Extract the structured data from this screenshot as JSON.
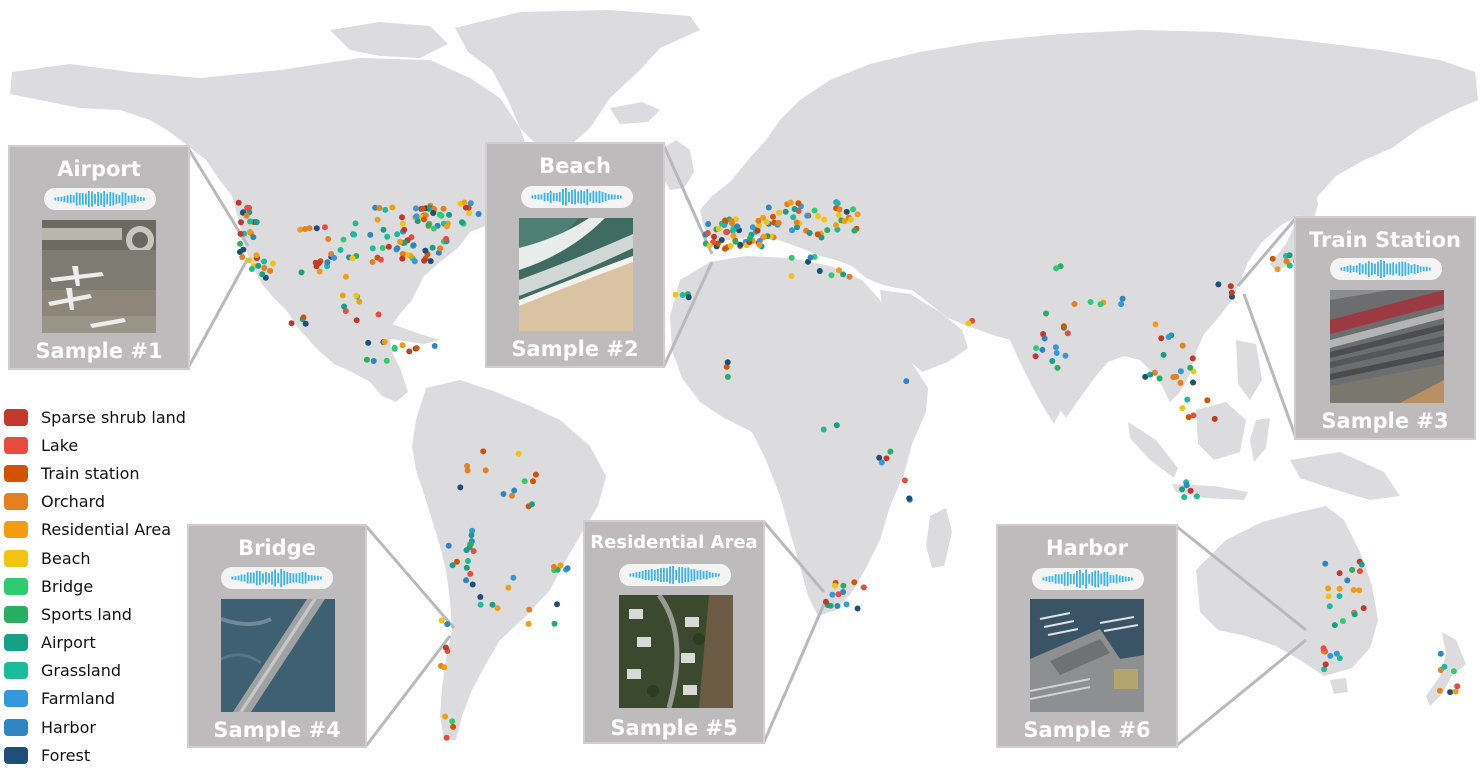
{
  "legend": [
    {
      "label": "Sparse shrub land",
      "color": "#c0392b"
    },
    {
      "label": "Lake",
      "color": "#e74c3c"
    },
    {
      "label": "Train station",
      "color": "#d35400"
    },
    {
      "label": "Orchard",
      "color": "#e67e22"
    },
    {
      "label": "Residential Area",
      "color": "#f39c12"
    },
    {
      "label": "Beach",
      "color": "#f1c40f"
    },
    {
      "label": "Bridge",
      "color": "#2ecc71"
    },
    {
      "label": "Sports land",
      "color": "#27ae60"
    },
    {
      "label": "Airport",
      "color": "#16a085"
    },
    {
      "label": "Grassland",
      "color": "#1abc9c"
    },
    {
      "label": "Farmland",
      "color": "#3498db"
    },
    {
      "label": "Harbor",
      "color": "#2e86c1"
    },
    {
      "label": "Forest",
      "color": "#1f4e79"
    }
  ],
  "samples": [
    {
      "title": "Airport",
      "footer": "Sample #1",
      "image": "airport-aerial"
    },
    {
      "title": "Beach",
      "footer": "Sample #2",
      "image": "beach-aerial"
    },
    {
      "title": "Train Station",
      "footer": "Sample #3",
      "image": "train-station-aerial"
    },
    {
      "title": "Bridge",
      "footer": "Sample #4",
      "image": "bridge-aerial"
    },
    {
      "title": "Residential Area",
      "footer": "Sample #5",
      "image": "residential-aerial"
    },
    {
      "title": "Harbor",
      "footer": "Sample #6",
      "image": "harbor-aerial"
    }
  ],
  "colors": {
    "land": "#dcdcdf",
    "card_background": "#bdbbbc",
    "waveform": "#3bb2e8"
  }
}
